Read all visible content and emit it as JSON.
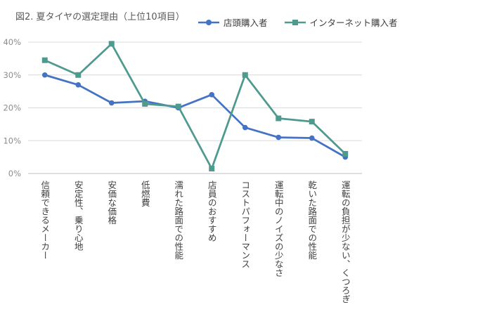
{
  "chart_data": {
    "type": "line",
    "title": "図2. 夏タイヤの選定理由（上位10項目）",
    "categories": [
      "信頼できるメーカー",
      "安定性、乗り心地",
      "安価な価格",
      "低燃費",
      "濡れた路面での性能",
      "店員のおすすめ",
      "コストパフォーマンス",
      "運転中のノイズの少なさ",
      "乾いた路面での性能",
      "運転の負担が少ない、くつろぎ"
    ],
    "series": [
      {
        "name": "店頭購入者",
        "color": "#4472c4",
        "marker": "circle",
        "values": [
          30.0,
          27.0,
          21.5,
          22.0,
          20.0,
          24.0,
          14.0,
          11.0,
          10.8,
          5.0
        ]
      },
      {
        "name": "インターネット購入者",
        "color": "#4e9a8f",
        "marker": "square",
        "values": [
          34.5,
          30.0,
          39.5,
          21.2,
          20.4,
          1.5,
          30.0,
          16.8,
          15.8,
          6.0
        ]
      }
    ],
    "ylim": [
      0,
      40
    ],
    "yticks": [
      0,
      10,
      20,
      30,
      40
    ],
    "ytick_labels": [
      "0%",
      "10%",
      "20%",
      "30%",
      "40%"
    ],
    "grid": true,
    "legend_position": "top"
  }
}
